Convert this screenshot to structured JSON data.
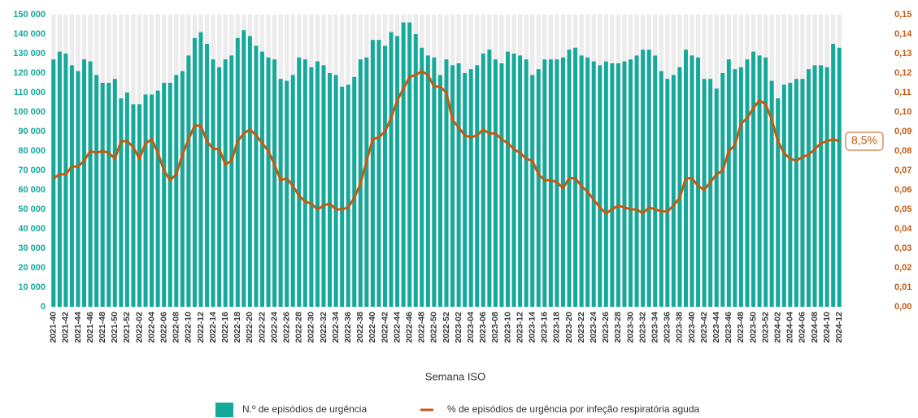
{
  "chart_data": {
    "type": "bar",
    "x_label": "Semana ISO",
    "categories": [
      "2021-40",
      null,
      "2021-42",
      null,
      "2021-44",
      null,
      "2021-46",
      null,
      "2021-48",
      null,
      "2021-50",
      null,
      "2021-52",
      null,
      "2022-02",
      null,
      "2022-04",
      null,
      "2022-06",
      null,
      "2022-08",
      null,
      "2022-10",
      null,
      "2022-12",
      null,
      "2022-14",
      null,
      "2022-16",
      null,
      "2022-18",
      null,
      "2022-20",
      null,
      "2022-22",
      null,
      "2022-24",
      null,
      "2022-26",
      null,
      "2022-28",
      null,
      "2022-30",
      null,
      "2022-32",
      null,
      "2022-34",
      null,
      "2022-36",
      null,
      "2022-38",
      null,
      "2022-40",
      null,
      "2022-42",
      null,
      "2022-44",
      null,
      "2022-46",
      null,
      "2022-48",
      null,
      "2022-50",
      null,
      "2022-52",
      null,
      "2023-02",
      null,
      "2023-04",
      null,
      "2023-06",
      null,
      "2023-08",
      null,
      "2023-10",
      null,
      "2023-12",
      null,
      "2023-14",
      null,
      "2023-16",
      null,
      "2023-18",
      null,
      "2023-20",
      null,
      "2023-22",
      null,
      "2023-24",
      null,
      "2023-26",
      null,
      "2023-28",
      null,
      "2023-30",
      null,
      "2023-32",
      null,
      "2023-34",
      null,
      "2023-36",
      null,
      "2023-38",
      null,
      "2023-40",
      null,
      "2023-42",
      null,
      "2023-44",
      null,
      "2023-46",
      null,
      "2023-48",
      null,
      "2023-50",
      null,
      "2023-52",
      null,
      "2024-02",
      null,
      "2024-04",
      null,
      "2024-06",
      null,
      "2024-08",
      null,
      "2024-10",
      null,
      "2024-12"
    ],
    "series": [
      {
        "name": "N.º de episódios de urgência",
        "type": "bar",
        "color": "#14a99a",
        "values": [
          127000,
          131000,
          130000,
          124000,
          121000,
          127000,
          126000,
          119000,
          115000,
          115000,
          117000,
          107000,
          110000,
          104000,
          104000,
          109000,
          109000,
          111000,
          115000,
          115000,
          119000,
          121000,
          129000,
          138000,
          141000,
          135000,
          127000,
          123000,
          127000,
          129000,
          138000,
          142000,
          139000,
          134000,
          131000,
          128000,
          127000,
          117000,
          116000,
          119000,
          128000,
          127000,
          123000,
          126000,
          124000,
          120000,
          119000,
          113000,
          114000,
          118000,
          127000,
          128000,
          137000,
          137000,
          134000,
          141000,
          139000,
          146000,
          146000,
          140000,
          133000,
          129000,
          128000,
          119000,
          127000,
          124000,
          125000,
          120000,
          122000,
          124000,
          130000,
          132000,
          127000,
          125000,
          131000,
          130000,
          129000,
          127000,
          119000,
          122000,
          127000,
          127000,
          127000,
          128000,
          132000,
          133000,
          129000,
          128000,
          126000,
          124000,
          126000,
          125000,
          125000,
          126000,
          127000,
          129000,
          132000,
          132000,
          129000,
          121000,
          117000,
          119000,
          123000,
          132000,
          129000,
          128000,
          117000,
          117000,
          112000,
          120000,
          127000,
          122000,
          123000,
          127000,
          131000,
          129000,
          128000,
          116000,
          107000,
          114000,
          115000,
          117000,
          117000,
          122000,
          124000,
          124000,
          123000,
          135000,
          133000
        ]
      },
      {
        "name": "% de episódios de urgência por infeção respiratória aguda",
        "type": "line",
        "axis": "y2",
        "color": "#c55a11",
        "values": [
          0.066,
          0.068,
          0.068,
          0.072,
          0.072,
          0.075,
          0.08,
          0.079,
          0.08,
          0.079,
          0.076,
          0.085,
          0.085,
          0.082,
          0.076,
          0.084,
          0.086,
          0.079,
          0.07,
          0.065,
          0.068,
          0.078,
          0.086,
          0.093,
          0.093,
          0.085,
          0.081,
          0.081,
          0.073,
          0.075,
          0.085,
          0.089,
          0.091,
          0.088,
          0.084,
          0.08,
          0.073,
          0.065,
          0.066,
          0.062,
          0.057,
          0.054,
          0.053,
          0.05,
          0.052,
          0.053,
          0.05,
          0.05,
          0.051,
          0.056,
          0.063,
          0.075,
          0.086,
          0.087,
          0.09,
          0.097,
          0.106,
          0.112,
          0.118,
          0.119,
          0.121,
          0.119,
          0.113,
          0.113,
          0.11,
          0.096,
          0.092,
          0.088,
          0.087,
          0.088,
          0.091,
          0.089,
          0.089,
          0.086,
          0.084,
          0.081,
          0.079,
          0.076,
          0.075,
          0.068,
          0.065,
          0.065,
          0.064,
          0.061,
          0.066,
          0.066,
          0.062,
          0.059,
          0.055,
          0.051,
          0.048,
          0.05,
          0.052,
          0.051,
          0.05,
          0.05,
          0.048,
          0.051,
          0.05,
          0.049,
          0.049,
          0.052,
          0.056,
          0.066,
          0.066,
          0.062,
          0.06,
          0.064,
          0.068,
          0.07,
          0.08,
          0.083,
          0.094,
          0.097,
          0.102,
          0.106,
          0.104,
          0.096,
          0.085,
          0.079,
          0.076,
          0.075,
          0.077,
          0.078,
          0.081,
          0.084,
          0.085,
          0.086,
          0.085
        ]
      }
    ],
    "annotation": "8,5%",
    "ylim": [
      0,
      150000
    ],
    "yticks": [
      0,
      {
        "value": 10000,
        "label": "10 000"
      },
      {
        "value": 20000,
        "label": "20 000"
      },
      {
        "value": 30000,
        "label": "30 000"
      },
      {
        "value": 40000,
        "label": "40 000"
      },
      {
        "value": 50000,
        "label": "50 000"
      },
      {
        "value": 60000,
        "label": "60 000"
      },
      {
        "value": 70000,
        "label": "70 000"
      },
      {
        "value": 80000,
        "label": "80 000"
      },
      {
        "value": 90000,
        "label": "90 000"
      },
      {
        "value": 100000,
        "label": "100 000"
      },
      {
        "value": 110000,
        "label": "110 000"
      },
      {
        "value": 120000,
        "label": "120 000"
      },
      {
        "value": 130000,
        "label": "130 000"
      },
      {
        "value": 140000,
        "label": "140 000"
      },
      {
        "value": 150000,
        "label": "150 000"
      }
    ],
    "y2lim": [
      0,
      0.15
    ],
    "y2ticks": [
      {
        "value": 0,
        "label": "0,00"
      },
      {
        "value": 0.01,
        "label": "0,01"
      },
      {
        "value": 0.02,
        "label": "0,02"
      },
      {
        "value": 0.03,
        "label": "0,03"
      },
      {
        "value": 0.04,
        "label": "0,04"
      },
      {
        "value": 0.05,
        "label": "0,05"
      },
      {
        "value": 0.06,
        "label": "0,06"
      },
      {
        "value": 0.07,
        "label": "0,07"
      },
      {
        "value": 0.08,
        "label": "0,08"
      },
      {
        "value": 0.09,
        "label": "0,09"
      },
      {
        "value": 0.1,
        "label": "0,10"
      },
      {
        "value": 0.11,
        "label": "0,11"
      },
      {
        "value": 0.12,
        "label": "0,12"
      },
      {
        "value": 0.13,
        "label": "0,13"
      },
      {
        "value": 0.14,
        "label": "0,14"
      },
      {
        "value": 0.15,
        "label": "0,15"
      }
    ],
    "legend": "bottom"
  }
}
